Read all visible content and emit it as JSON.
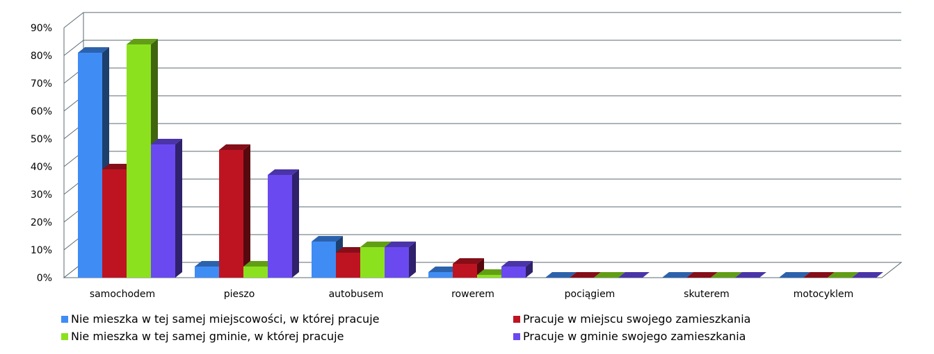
{
  "chart_data": {
    "type": "bar",
    "title": "",
    "xlabel": "",
    "ylabel": "",
    "categories": [
      "samochodem",
      "pieszo",
      "autobusem",
      "rowerem",
      "pociągiem",
      "skuterem",
      "motocyklem"
    ],
    "y_ticks": [
      "0%",
      "10%",
      "20%",
      "30%",
      "40%",
      "50%",
      "60%",
      "70%",
      "80%",
      "90%"
    ],
    "ylim": [
      0,
      90
    ],
    "grid": true,
    "legend_position": "bottom",
    "series": [
      {
        "name": "Nie mieszka w tej samej miejscowości, w której pracuje",
        "color": "#3f8cf5",
        "values": [
          81,
          4,
          13,
          2,
          0,
          0,
          0
        ]
      },
      {
        "name": "Pracuje w miejscu swojego zamieszkania",
        "color": "#be1422",
        "values": [
          39,
          46,
          9,
          5,
          0,
          0,
          0
        ]
      },
      {
        "name": "Nie mieszka w tej samej gminie, w której pracuje",
        "color": "#8ce11e",
        "values": [
          84,
          4,
          11,
          1,
          0,
          0,
          0
        ]
      },
      {
        "name": "Pracuje w gminie swojego zamieszkania",
        "color": "#6a4af0",
        "values": [
          48,
          37,
          11,
          4,
          0,
          0,
          0
        ]
      }
    ]
  }
}
